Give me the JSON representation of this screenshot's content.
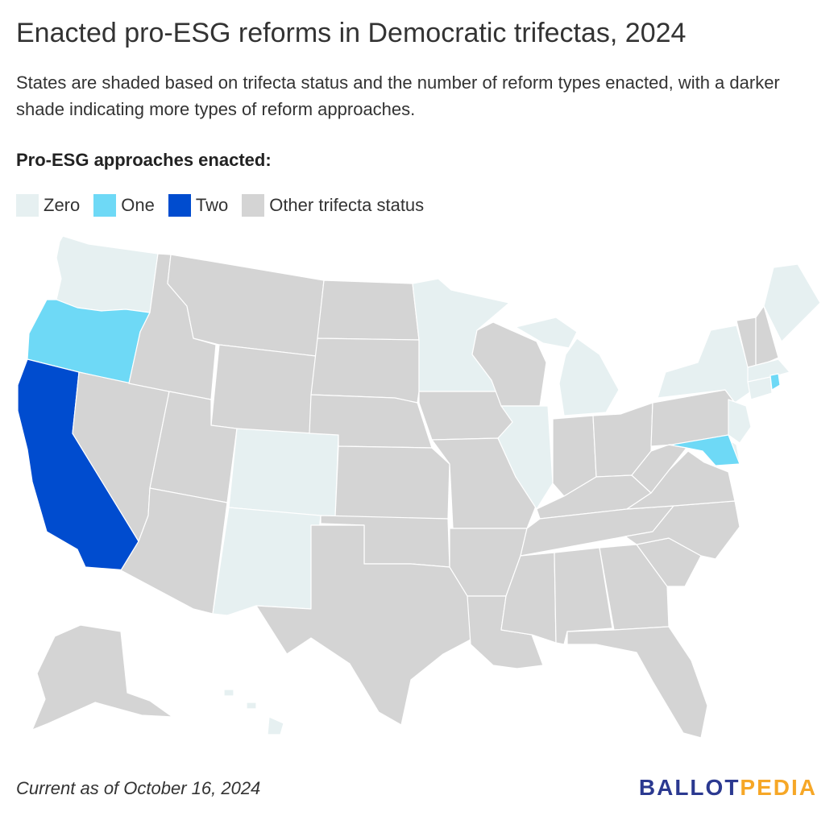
{
  "title": "Enacted pro-ESG reforms in Democratic trifectas, 2024",
  "subtitle": "States are shaded based on trifecta status and the number of reform types enacted, with a darker shade indicating more types of reform approaches.",
  "legend": {
    "title": "Pro-ESG approaches enacted:",
    "items": [
      {
        "key": "zero",
        "label": "Zero",
        "color": "#e6f0f1"
      },
      {
        "key": "one",
        "label": "One",
        "color": "#6ed9f6"
      },
      {
        "key": "two",
        "label": "Two",
        "color": "#004ccf"
      },
      {
        "key": "other",
        "label": "Other trifecta status",
        "color": "#d4d4d4"
      }
    ]
  },
  "colors": {
    "zero": "#e6f0f1",
    "one": "#6ed9f6",
    "two": "#004ccf",
    "other": "#d4d4d4",
    "border": "#ffffff"
  },
  "states": {
    "Washington": "zero",
    "Oregon": "one",
    "California": "two",
    "Nevada": "other",
    "Idaho": "other",
    "Montana": "other",
    "Wyoming": "other",
    "Utah": "other",
    "Arizona": "other",
    "Colorado": "zero",
    "New Mexico": "zero",
    "North Dakota": "other",
    "South Dakota": "other",
    "Nebraska": "other",
    "Kansas": "other",
    "Oklahoma": "other",
    "Texas": "other",
    "Minnesota": "zero",
    "Iowa": "other",
    "Missouri": "other",
    "Arkansas": "other",
    "Louisiana": "other",
    "Wisconsin": "other",
    "Illinois": "zero",
    "Michigan": "zero",
    "Indiana": "other",
    "Ohio": "other",
    "Kentucky": "other",
    "Tennessee": "other",
    "Mississippi": "other",
    "Alabama": "other",
    "Georgia": "other",
    "Florida": "other",
    "South Carolina": "other",
    "North Carolina": "other",
    "Virginia": "other",
    "West Virginia": "other",
    "Pennsylvania": "other",
    "New York": "zero",
    "New Jersey": "zero",
    "Delaware": "zero",
    "Maryland": "one",
    "Vermont": "other",
    "New Hampshire": "other",
    "Maine": "zero",
    "Massachusetts": "zero",
    "Connecticut": "zero",
    "Rhode Island": "one",
    "Alaska": "other",
    "Hawaii": "zero"
  },
  "footer": {
    "note": "Current as of October 16, 2024"
  },
  "logo": {
    "part1": "BALLOT",
    "part2": "PEDIA"
  }
}
